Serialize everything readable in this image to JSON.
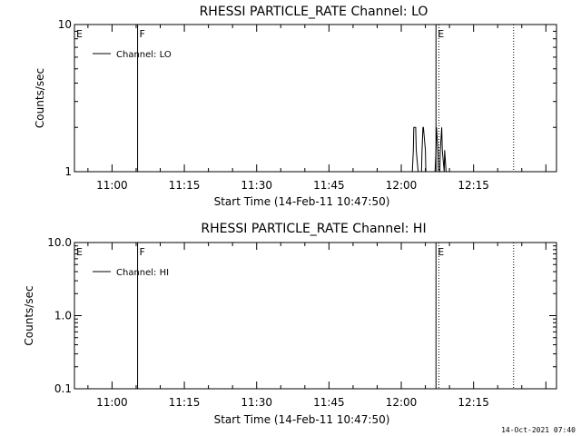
{
  "footer": {
    "timestamp": "14-Oct-2021 07:40"
  },
  "chart_data": [
    {
      "type": "line",
      "title": "RHESSI PARTICLE_RATE Channel: LO",
      "xlabel": "Start Time (14-Feb-11 10:47:50)",
      "ylabel": "Counts/sec",
      "yscale": "log",
      "ylim": [
        1,
        10
      ],
      "y_ticks": [
        "1",
        "10"
      ],
      "xlim_minutes": [
        -7.8,
        92.2
      ],
      "x_ticks": [
        {
          "label": "11:00",
          "min": 0
        },
        {
          "label": "11:15",
          "min": 15
        },
        {
          "label": "11:30",
          "min": 30
        },
        {
          "label": "11:45",
          "min": 45
        },
        {
          "label": "12:00",
          "min": 60
        },
        {
          "label": "12:15",
          "min": 75
        }
      ],
      "legend": "Channel: LO",
      "legend_position": "top-left",
      "markers": [
        {
          "label": "E",
          "min": -7.8,
          "style": "none"
        },
        {
          "label": "F",
          "min": 5.3,
          "style": "solid"
        },
        {
          "label": "E",
          "min": 67.2,
          "style": "solid"
        },
        {
          "label": "",
          "min": 67.8,
          "style": "dotted"
        },
        {
          "label": "",
          "min": 83.3,
          "style": "dotted"
        }
      ],
      "series": [
        {
          "x": [
            62.3,
            62.5,
            62.6,
            63.0,
            63.1,
            63.5,
            63.6,
            64.2,
            64.3,
            64.5,
            64.6,
            65.0,
            65.1,
            65.4,
            67.0,
            67.2,
            67.3,
            67.6,
            67.7,
            68.0,
            68.1,
            68.4,
            68.5,
            68.9,
            69.0,
            69.3
          ],
          "y": [
            1,
            1.4,
            2,
            2,
            1.4,
            1,
            1,
            1,
            1.4,
            2,
            2,
            1.4,
            1,
            1,
            1,
            1.4,
            2,
            1.4,
            1,
            1,
            1.4,
            2,
            1.4,
            1,
            1.4,
            1
          ]
        }
      ]
    },
    {
      "type": "line",
      "title": "RHESSI PARTICLE_RATE Channel: HI",
      "xlabel": "Start Time (14-Feb-11 10:47:50)",
      "ylabel": "Counts/sec",
      "yscale": "log",
      "ylim": [
        0.1,
        10
      ],
      "y_ticks": [
        "0.1",
        "1.0",
        "10.0"
      ],
      "xlim_minutes": [
        -7.8,
        92.2
      ],
      "x_ticks": [
        {
          "label": "11:00",
          "min": 0
        },
        {
          "label": "11:15",
          "min": 15
        },
        {
          "label": "11:30",
          "min": 30
        },
        {
          "label": "11:45",
          "min": 45
        },
        {
          "label": "12:00",
          "min": 60
        },
        {
          "label": "12:15",
          "min": 75
        }
      ],
      "legend": "Channel: HI",
      "legend_position": "top-left",
      "markers": [
        {
          "label": "E",
          "min": -7.8,
          "style": "none"
        },
        {
          "label": "F",
          "min": 5.3,
          "style": "solid"
        },
        {
          "label": "E",
          "min": 67.2,
          "style": "solid"
        },
        {
          "label": "",
          "min": 67.8,
          "style": "dotted"
        },
        {
          "label": "",
          "min": 83.3,
          "style": "dotted"
        }
      ],
      "series": []
    }
  ]
}
